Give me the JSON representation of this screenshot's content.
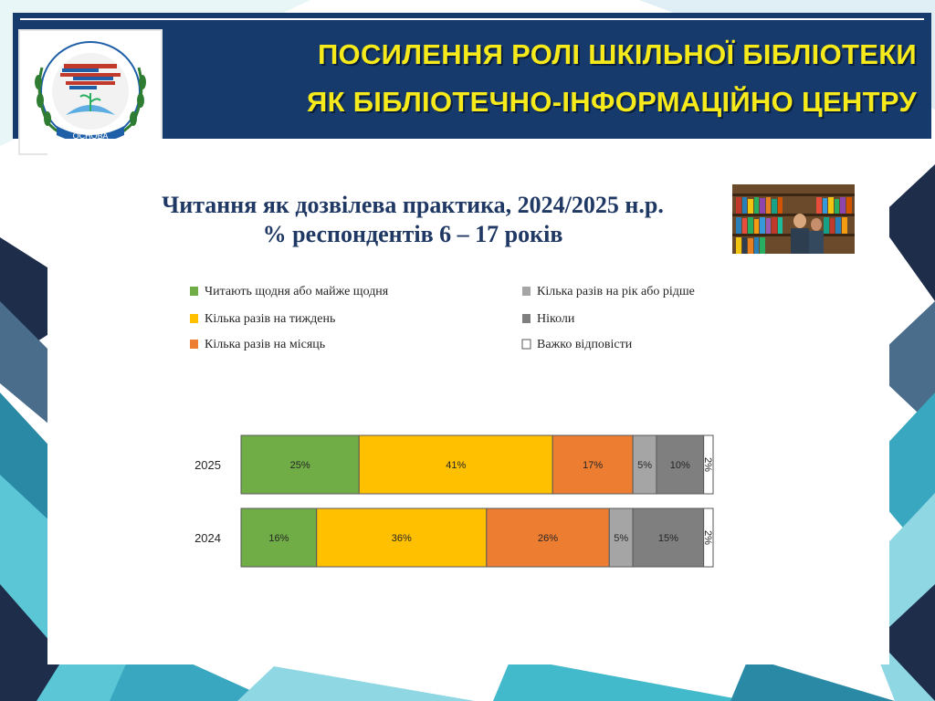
{
  "header": {
    "title_line1": "ПОСИЛЕННЯ РОЛІ ШКІЛЬНОЇ БІБЛІОТЕКИ",
    "title_line2": "ЯК БІБЛІОТЕЧНО-ІНФОРМАЦІЙНО ЦЕНТРУ",
    "logo_caption": "ОСНОВА",
    "bg_color": "#163a6b",
    "title_color": "#f6ea1b"
  },
  "chart_data": {
    "type": "bar",
    "orientation": "horizontal-stacked-100",
    "title": "Читання як дозвілева практика, 2024/2025 н.р.",
    "subtitle": "% респондентів 6 – 17 років",
    "categories": [
      "2025",
      "2024"
    ],
    "legend_position": "top",
    "series": [
      {
        "name": "Читають щодня або майже щодня",
        "color": "#70ad47",
        "values": [
          25,
          16
        ]
      },
      {
        "name": "Кілька разів на тиждень",
        "color": "#ffc000",
        "values": [
          41,
          36
        ]
      },
      {
        "name": "Кілька разів на місяць",
        "color": "#ed7d31",
        "values": [
          17,
          26
        ]
      },
      {
        "name": "Кілька разів на рік або рідше",
        "color": "#a5a5a5",
        "values": [
          5,
          5
        ]
      },
      {
        "name": "Ніколи",
        "color": "#7f7f7f",
        "values": [
          10,
          15
        ]
      },
      {
        "name": "Важко відповісти",
        "color": "#ffffff",
        "values": [
          2,
          2
        ]
      }
    ],
    "data_labels": [
      [
        "25%",
        "41%",
        "17%",
        "5%",
        "10%",
        "2%"
      ],
      [
        "16%",
        "36%",
        "26%",
        "5%",
        "15%",
        "2%"
      ]
    ],
    "grid": false
  }
}
